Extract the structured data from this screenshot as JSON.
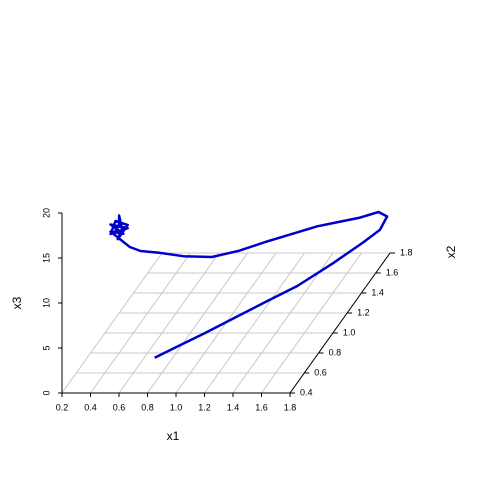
{
  "chart_data": {
    "type": "line3d",
    "xlabel": "x1",
    "ylabel": "x2",
    "zlabel": "x3",
    "color": "#0000cd",
    "x": [
      0.75,
      0.85,
      1.0,
      1.15,
      1.3,
      1.45,
      1.6,
      1.72,
      1.78,
      1.8,
      1.74,
      1.62,
      1.5,
      1.35,
      1.2,
      1.05,
      0.9,
      0.75,
      0.6,
      0.48,
      0.4,
      0.35,
      0.3,
      0.25,
      0.32,
      0.26,
      0.34,
      0.24,
      0.3,
      0.36,
      0.28,
      0.33,
      0.32,
      0.3,
      0.26
    ],
    "y": [
      0.6,
      0.68,
      0.8,
      0.93,
      1.06,
      1.2,
      1.4,
      1.58,
      1.7,
      1.76,
      1.76,
      1.74,
      1.72,
      1.68,
      1.62,
      1.55,
      1.48,
      1.4,
      1.3,
      1.2,
      1.1,
      1.05,
      1.0,
      0.98,
      1.02,
      0.96,
      1.04,
      1.0,
      0.95,
      1.0,
      1.02,
      0.98,
      0.96,
      1.0,
      1.02
    ],
    "z": [
      1.7,
      1.9,
      2.2,
      2.5,
      2.8,
      3.0,
      3.3,
      3.6,
      3.7,
      4.5,
      5.0,
      4.6,
      4.4,
      4.3,
      4.1,
      4.0,
      3.8,
      4.0,
      5.2,
      6.7,
      8.0,
      9.0,
      10.5,
      11.5,
      10.8,
      12.5,
      11.2,
      11.0,
      13.0,
      12.0,
      10.2,
      11.8,
      13.5,
      12.0,
      11.0
    ],
    "xlim": [
      0.2,
      1.8
    ],
    "ylim": [
      0.4,
      1.8
    ],
    "zlim": [
      0,
      20
    ],
    "xticks": [
      0.2,
      0.4,
      0.6,
      0.8,
      {
        "value": 1,
        "label": "1.0"
      },
      1.2,
      1.4,
      1.6,
      1.8
    ],
    "yticks": [
      0.4,
      0.6,
      0.8,
      {
        "value": 1,
        "label": "1.0"
      },
      1.2,
      1.4,
      1.6,
      1.8
    ],
    "zticks": [
      0,
      5,
      10,
      15,
      20
    ],
    "grid": true
  }
}
